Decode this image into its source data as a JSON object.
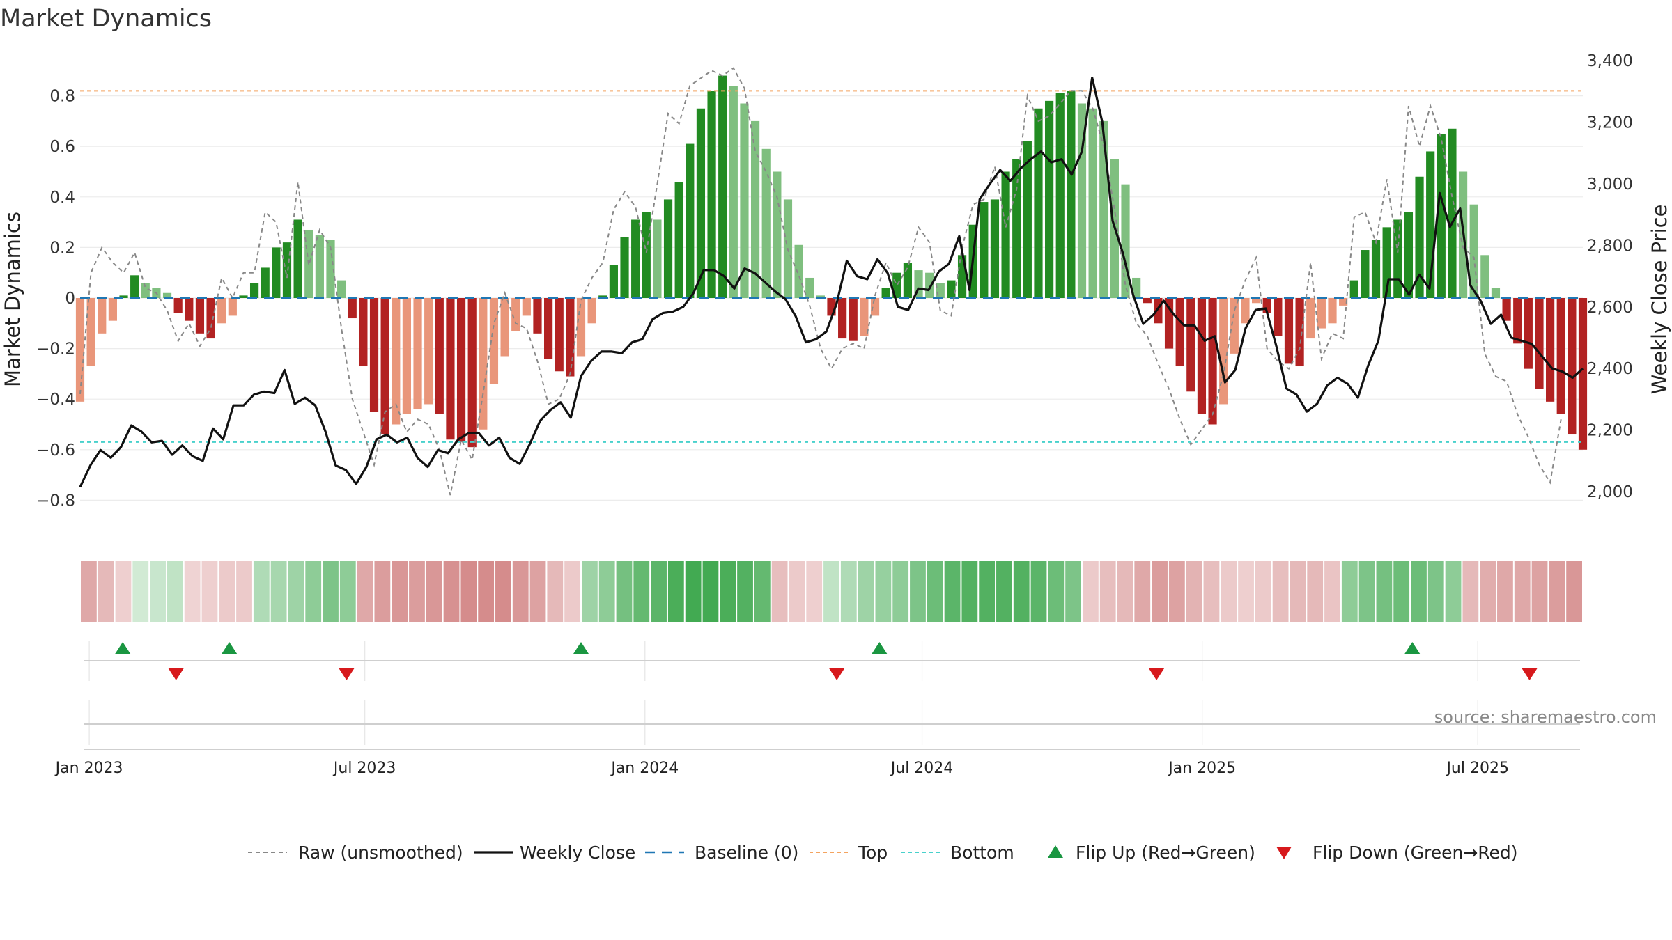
{
  "chart_data": {
    "type": "bar",
    "title": "Market Dynamics",
    "ylabel": "Market Dynamics",
    "ylabel_right": "Weekly Close Price",
    "ylim": [
      -0.96,
      0.96
    ],
    "ylim_right": [
      1940,
      3420
    ],
    "yticks": [
      -0.8,
      -0.6,
      -0.4,
      -0.2,
      0,
      0.2,
      0.4,
      0.6,
      0.8
    ],
    "yticks_right": [
      2000,
      2200,
      2400,
      2600,
      2800,
      3000,
      3200,
      3400
    ],
    "x_start": "2022-12-26",
    "x_end": "2025-09-08",
    "x_step_days": 7,
    "xticks": [
      {
        "label": "Jan 2023",
        "date": "2023-01-01"
      },
      {
        "label": "Jul 2023",
        "date": "2023-07-01"
      },
      {
        "label": "Jan 2024",
        "date": "2024-01-01"
      },
      {
        "label": "Jul 2024",
        "date": "2024-07-01"
      },
      {
        "label": "Jan 2025",
        "date": "2025-01-01"
      },
      {
        "label": "Jul 2025",
        "date": "2025-07-01"
      }
    ],
    "top_level": 0.82,
    "bottom_level": -0.57,
    "baseline": 0,
    "market_dynamics": [
      -0.41,
      -0.27,
      -0.14,
      -0.09,
      0.01,
      0.09,
      0.06,
      0.04,
      0.02,
      -0.06,
      -0.09,
      -0.14,
      -0.16,
      -0.1,
      -0.07,
      0.01,
      0.06,
      0.12,
      0.2,
      0.22,
      0.31,
      0.27,
      0.25,
      0.23,
      0.07,
      -0.08,
      -0.27,
      -0.45,
      -0.54,
      -0.5,
      -0.46,
      -0.44,
      -0.42,
      -0.46,
      -0.56,
      -0.57,
      -0.59,
      -0.52,
      -0.34,
      -0.23,
      -0.13,
      -0.07,
      -0.14,
      -0.24,
      -0.29,
      -0.31,
      -0.23,
      -0.1,
      0.01,
      0.13,
      0.24,
      0.31,
      0.34,
      0.31,
      0.39,
      0.46,
      0.61,
      0.75,
      0.82,
      0.88,
      0.84,
      0.77,
      0.7,
      0.59,
      0.5,
      0.39,
      0.21,
      0.08,
      0.01,
      -0.07,
      -0.16,
      -0.17,
      -0.15,
      -0.07,
      0.04,
      0.1,
      0.14,
      0.11,
      0.1,
      0.06,
      0.07,
      0.17,
      0.29,
      0.38,
      0.39,
      0.5,
      0.55,
      0.62,
      0.75,
      0.78,
      0.81,
      0.82,
      0.77,
      0.75,
      0.7,
      0.55,
      0.45,
      0.08,
      -0.02,
      -0.1,
      -0.2,
      -0.27,
      -0.37,
      -0.46,
      -0.5,
      -0.42,
      -0.22,
      -0.1,
      -0.02,
      -0.06,
      -0.15,
      -0.26,
      -0.27,
      -0.16,
      -0.12,
      -0.1,
      -0.03,
      0.07,
      0.19,
      0.23,
      0.28,
      0.31,
      0.34,
      0.48,
      0.58,
      0.65,
      0.67,
      0.5,
      0.37,
      0.17,
      0.04,
      -0.09,
      -0.18,
      -0.28,
      -0.36,
      -0.41,
      -0.46,
      -0.54,
      -0.6
    ],
    "raw_unsmoothed": [
      -0.38,
      0.1,
      0.2,
      0.14,
      0.1,
      0.18,
      0.04,
      0.02,
      -0.05,
      -0.17,
      -0.1,
      -0.19,
      -0.12,
      0.08,
      0,
      0.1,
      0.1,
      0.34,
      0.3,
      0.08,
      0.46,
      0.13,
      0.27,
      0.2,
      -0.12,
      -0.4,
      -0.53,
      -0.66,
      -0.45,
      -0.42,
      -0.53,
      -0.48,
      -0.5,
      -0.6,
      -0.78,
      -0.56,
      -0.64,
      -0.38,
      -0.1,
      0.02,
      -0.1,
      -0.12,
      -0.25,
      -0.42,
      -0.4,
      -0.3,
      -0.01,
      0.08,
      0.14,
      0.35,
      0.42,
      0.36,
      0.18,
      0.45,
      0.73,
      0.69,
      0.84,
      0.87,
      0.9,
      0.88,
      0.91,
      0.83,
      0.58,
      0.5,
      0.4,
      0.19,
      0.09,
      -0.03,
      -0.2,
      -0.28,
      -0.2,
      -0.18,
      -0.2,
      0.01,
      0.14,
      0.05,
      0.12,
      0.28,
      0.22,
      -0.05,
      -0.07,
      0.2,
      0.37,
      0.39,
      0.52,
      0.28,
      0.43,
      0.8,
      0.7,
      0.72,
      0.77,
      0.82,
      0.82,
      0.75,
      0.6,
      0.35,
      0.05,
      -0.1,
      -0.15,
      -0.26,
      -0.36,
      -0.48,
      -0.58,
      -0.52,
      -0.46,
      -0.3,
      -0.05,
      0.07,
      0.16,
      -0.2,
      -0.25,
      -0.28,
      -0.2,
      0.14,
      -0.24,
      -0.14,
      -0.16,
      0.32,
      0.34,
      0.22,
      0.47,
      0.18,
      0.76,
      0.6,
      0.76,
      0.63,
      0.4,
      0.2,
      0.16,
      -0.22,
      -0.31,
      -0.33,
      -0.46,
      -0.55,
      -0.66,
      -0.73,
      -0.48
    ],
    "weekly_close": [
      2015,
      2085,
      2135,
      2110,
      2145,
      2215,
      2195,
      2160,
      2165,
      2120,
      2150,
      2115,
      2100,
      2205,
      2170,
      2280,
      2280,
      2315,
      2325,
      2320,
      2395,
      2285,
      2305,
      2280,
      2195,
      2085,
      2070,
      2025,
      2080,
      2170,
      2185,
      2160,
      2175,
      2110,
      2080,
      2135,
      2125,
      2170,
      2190,
      2190,
      2150,
      2175,
      2110,
      2090,
      2155,
      2230,
      2265,
      2290,
      2240,
      2375,
      2425,
      2455,
      2455,
      2450,
      2485,
      2495,
      2560,
      2580,
      2585,
      2600,
      2645,
      2720,
      2720,
      2700,
      2660,
      2725,
      2710,
      2680,
      2650,
      2625,
      2570,
      2485,
      2495,
      2520,
      2610,
      2750,
      2700,
      2690,
      2755,
      2710,
      2600,
      2590,
      2660,
      2655,
      2715,
      2740,
      2830,
      2655,
      2950,
      3000,
      3045,
      3010,
      3050,
      3080,
      3105,
      3070,
      3080,
      3030,
      3105,
      3345,
      3200,
      2880,
      2775,
      2640,
      2545,
      2575,
      2620,
      2575,
      2540,
      2540,
      2490,
      2505,
      2355,
      2395,
      2530,
      2590,
      2595,
      2475,
      2335,
      2315,
      2260,
      2285,
      2345,
      2370,
      2350,
      2305,
      2410,
      2490,
      2690,
      2690,
      2640,
      2705,
      2660,
      2970,
      2860,
      2920,
      2670,
      2620,
      2545,
      2575,
      2500,
      2490,
      2480,
      2440,
      2400,
      2390,
      2370,
      2400
    ],
    "heat_levels": [
      -0.6,
      -0.45,
      -0.25,
      0.1,
      0.15,
      0.2,
      -0.22,
      -0.25,
      -0.3,
      -0.3,
      0.3,
      0.35,
      0.4,
      0.5,
      0.6,
      0.5,
      -0.6,
      -0.7,
      -0.75,
      -0.7,
      -0.75,
      -0.8,
      -0.85,
      -0.85,
      -0.85,
      -0.75,
      -0.65,
      -0.45,
      -0.3,
      0.4,
      0.5,
      0.65,
      0.75,
      0.8,
      0.9,
      0.95,
      0.95,
      0.9,
      0.85,
      0.75,
      -0.4,
      -0.3,
      -0.25,
      0.2,
      0.3,
      0.4,
      0.45,
      0.5,
      0.6,
      0.7,
      0.8,
      0.85,
      0.85,
      0.85,
      0.85,
      0.8,
      0.7,
      0.6,
      -0.3,
      -0.4,
      -0.45,
      -0.6,
      -0.7,
      -0.65,
      -0.5,
      -0.4,
      -0.3,
      -0.25,
      -0.3,
      -0.4,
      -0.45,
      -0.45,
      -0.35,
      0.5,
      0.6,
      0.65,
      0.7,
      0.7,
      0.6,
      0.5,
      -0.45,
      -0.55,
      -0.6,
      -0.6,
      -0.65,
      -0.7,
      -0.75
    ],
    "flip_up": [
      "2023-01-23",
      "2023-04-03",
      "2023-11-20",
      "2024-06-03",
      "2025-05-19"
    ],
    "flip_down": [
      "2023-02-27",
      "2023-06-19",
      "2024-05-06",
      "2024-12-02",
      "2025-08-04"
    ],
    "legend": [
      {
        "key": "raw",
        "label": "Raw (unsmoothed)"
      },
      {
        "key": "close",
        "label": "Weekly Close"
      },
      {
        "key": "baseline",
        "label": "Baseline (0)"
      },
      {
        "key": "top",
        "label": "Top"
      },
      {
        "key": "bottom",
        "label": "Bottom"
      },
      {
        "key": "flip_up",
        "label": "Flip Up (Red→Green)"
      },
      {
        "key": "flip_down",
        "label": "Flip Down (Green→Red)"
      }
    ],
    "colors": {
      "strong_green": "#228b22",
      "light_green": "#7fbf7f",
      "strong_red": "#b22222",
      "light_red": "#e9967a",
      "close_line": "#111111",
      "raw_line": "#888888",
      "baseline": "#1f77b4",
      "top": "#f4a460",
      "bottom": "#48d1cc",
      "flip_up": "#1a9641",
      "flip_down": "#d7191c"
    }
  },
  "source": "source: sharemaestro.com"
}
